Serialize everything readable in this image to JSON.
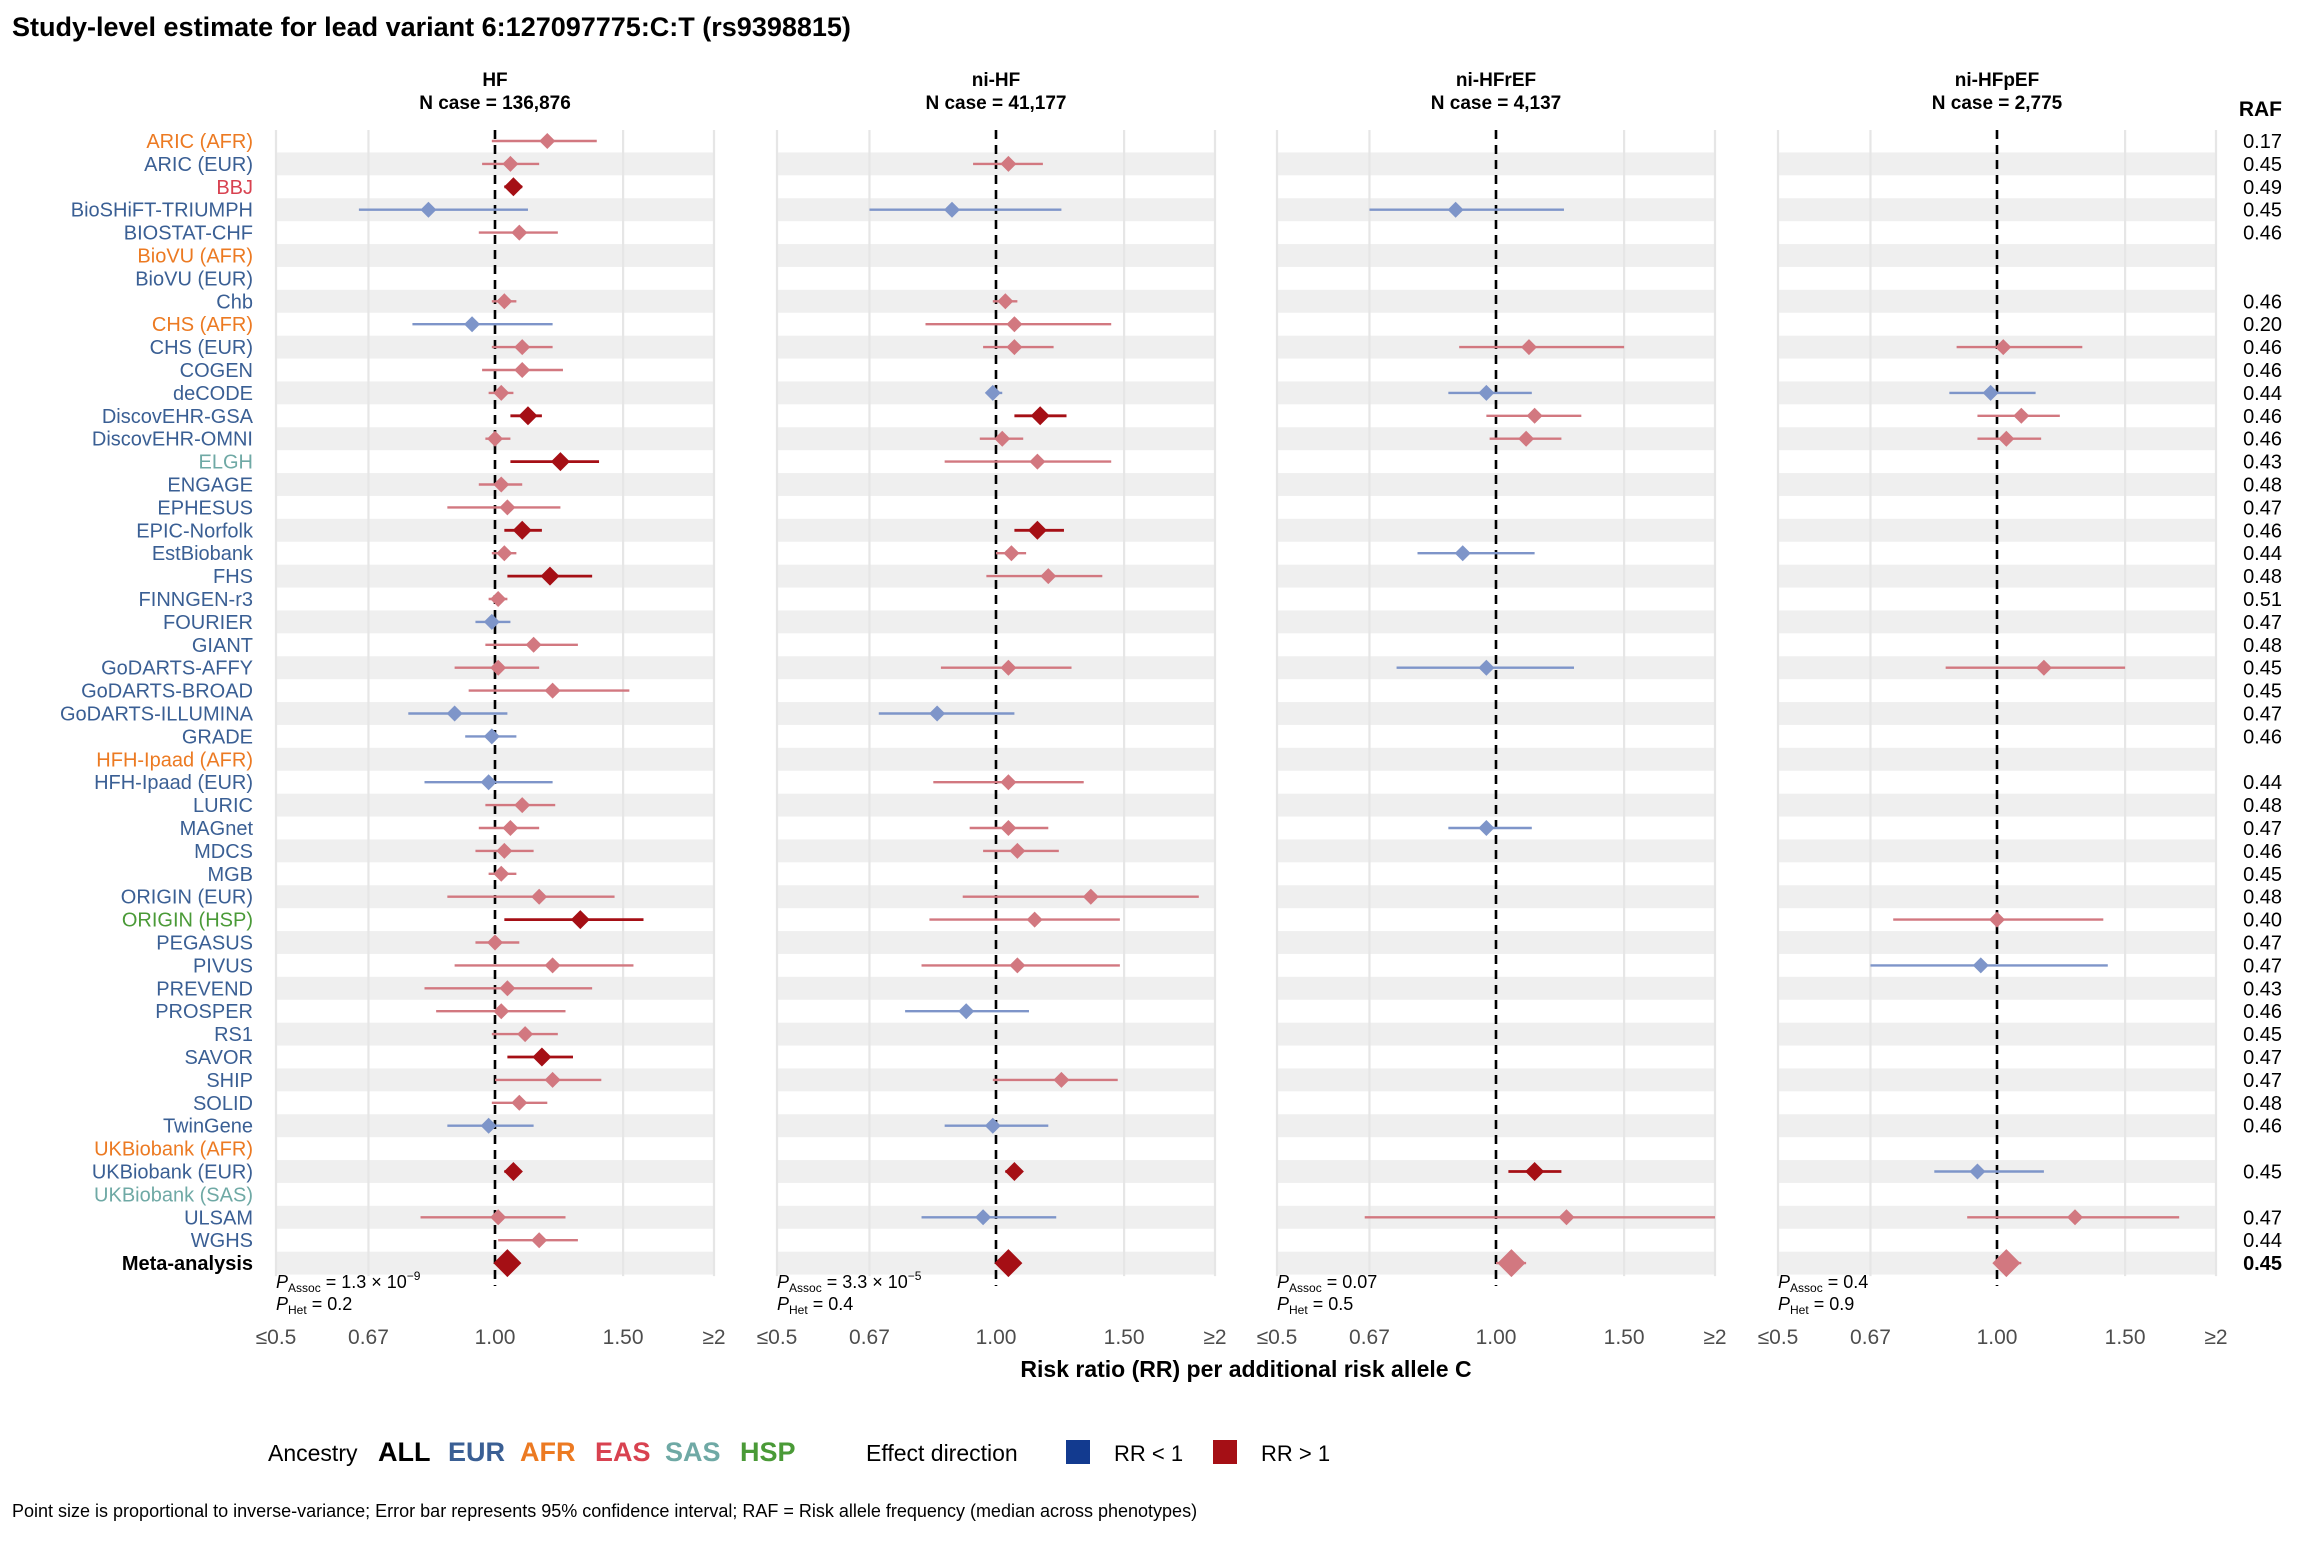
{
  "chart_data": {
    "type": "forest",
    "title": "Study-level estimate for lead variant 6:127097775:C:T (rs9398815)",
    "xlabel": "Risk ratio (RR) per additional risk allele C",
    "x_ticks": [
      "≤0.5",
      "0.67",
      "1.00",
      "1.50",
      "≥2"
    ],
    "x_scale": "log",
    "xlim": [
      0.5,
      2
    ],
    "raf_header": "RAF",
    "panels": [
      {
        "name": "HF",
        "n_case": "N case = 136,876",
        "p_assoc": "1.3 × 10",
        "p_assoc_exp": "−9",
        "p_het": "0.2"
      },
      {
        "name": "ni-HF",
        "n_case": "N case = 41,177",
        "p_assoc": "3.3 × 10",
        "p_assoc_exp": "−5",
        "p_het": "0.4"
      },
      {
        "name": "ni-HFrEF",
        "n_case": "N case = 4,137",
        "p_assoc": "0.07",
        "p_assoc_exp": "",
        "p_het": "0.5"
      },
      {
        "name": "ni-HFpEF",
        "n_case": "N case = 2,775",
        "p_assoc": "0.4",
        "p_assoc_exp": "",
        "p_het": "0.9"
      }
    ],
    "p_labels": {
      "assoc_sub": "Assoc",
      "het_sub": "Het"
    },
    "studies": [
      {
        "label": "ARIC (AFR)",
        "ancestry": "AFR",
        "raf": "0.17",
        "est": [
          [
            1.18,
            0.99,
            1.38,
            "l"
          ],
          null,
          null,
          null
        ]
      },
      {
        "label": "ARIC (EUR)",
        "ancestry": "EUR",
        "raf": "0.45",
        "est": [
          [
            1.05,
            0.96,
            1.15,
            "l"
          ],
          [
            1.04,
            0.93,
            1.16,
            "l"
          ],
          null,
          null
        ]
      },
      {
        "label": "BBJ",
        "ancestry": "EAS",
        "raf": "0.49",
        "est": [
          [
            1.06,
            1.03,
            1.09,
            "s"
          ],
          null,
          null,
          null
        ]
      },
      {
        "label": "BioSHiFT-TRIUMPH",
        "ancestry": "EUR",
        "raf": "0.45",
        "est": [
          [
            0.81,
            0.65,
            1.11,
            "l"
          ],
          [
            0.87,
            0.67,
            1.23,
            "l"
          ],
          [
            0.88,
            0.67,
            1.24,
            "l"
          ],
          null
        ]
      },
      {
        "label": "BIOSTAT-CHF",
        "ancestry": "EUR",
        "raf": "0.46",
        "est": [
          [
            1.08,
            0.95,
            1.22,
            "l"
          ],
          null,
          null,
          null
        ]
      },
      {
        "label": "BioVU (AFR)",
        "ancestry": "AFR",
        "raf": "",
        "est": [
          null,
          null,
          null,
          null
        ]
      },
      {
        "label": "BioVU (EUR)",
        "ancestry": "EUR",
        "raf": "",
        "est": [
          null,
          null,
          null,
          null
        ]
      },
      {
        "label": "Chb",
        "ancestry": "EUR",
        "raf": "0.46",
        "est": [
          [
            1.03,
            0.99,
            1.07,
            "l"
          ],
          [
            1.03,
            0.99,
            1.07,
            "l"
          ],
          null,
          null
        ]
      },
      {
        "label": "CHS (AFR)",
        "ancestry": "AFR",
        "raf": "0.20",
        "est": [
          [
            0.93,
            0.77,
            1.2,
            "l"
          ],
          [
            1.06,
            0.8,
            1.44,
            "l"
          ],
          null,
          null
        ]
      },
      {
        "label": "CHS (EUR)",
        "ancestry": "EUR",
        "raf": "0.46",
        "est": [
          [
            1.09,
            0.99,
            1.2,
            "l"
          ],
          [
            1.06,
            0.96,
            1.2,
            "l"
          ],
          [
            1.11,
            0.89,
            1.5,
            "l"
          ],
          [
            1.02,
            0.88,
            1.31,
            "l"
          ]
        ]
      },
      {
        "label": "COGEN",
        "ancestry": "EUR",
        "raf": "0.46",
        "est": [
          [
            1.09,
            0.96,
            1.24,
            "l"
          ],
          null,
          null,
          null
        ]
      },
      {
        "label": "deCODE",
        "ancestry": "EUR",
        "raf": "0.44",
        "est": [
          [
            1.02,
            0.98,
            1.06,
            "l"
          ],
          [
            0.99,
            0.97,
            1.02,
            "l"
          ],
          [
            0.97,
            0.86,
            1.12,
            "l"
          ],
          [
            0.98,
            0.86,
            1.13,
            "l"
          ]
        ]
      },
      {
        "label": "DiscovEHR-GSA",
        "ancestry": "EUR",
        "raf": "0.46",
        "est": [
          [
            1.11,
            1.05,
            1.16,
            "s"
          ],
          [
            1.15,
            1.06,
            1.25,
            "s"
          ],
          [
            1.13,
            0.97,
            1.31,
            "l"
          ],
          [
            1.08,
            0.94,
            1.22,
            "l"
          ]
        ]
      },
      {
        "label": "DiscovEHR-OMNI",
        "ancestry": "EUR",
        "raf": "0.46",
        "est": [
          [
            1.0,
            0.97,
            1.05,
            "l"
          ],
          [
            1.02,
            0.95,
            1.09,
            "l"
          ],
          [
            1.1,
            0.98,
            1.23,
            "l"
          ],
          [
            1.03,
            0.94,
            1.15,
            "l"
          ]
        ]
      },
      {
        "label": "ELGH",
        "ancestry": "SAS",
        "raf": "0.43",
        "est": [
          [
            1.23,
            1.05,
            1.39,
            "s"
          ],
          [
            1.14,
            0.85,
            1.44,
            "l"
          ],
          null,
          null
        ]
      },
      {
        "label": "ENGAGE",
        "ancestry": "EUR",
        "raf": "0.48",
        "est": [
          [
            1.02,
            0.95,
            1.09,
            "l"
          ],
          null,
          null,
          null
        ]
      },
      {
        "label": "EPHESUS",
        "ancestry": "EUR",
        "raf": "0.47",
        "est": [
          [
            1.04,
            0.86,
            1.23,
            "l"
          ],
          null,
          null,
          null
        ]
      },
      {
        "label": "EPIC-Norfolk",
        "ancestry": "EUR",
        "raf": "0.46",
        "est": [
          [
            1.09,
            1.03,
            1.16,
            "s"
          ],
          [
            1.14,
            1.06,
            1.24,
            "s"
          ],
          null,
          null
        ]
      },
      {
        "label": "EstBiobank",
        "ancestry": "EUR",
        "raf": "0.44",
        "est": [
          [
            1.03,
            0.99,
            1.07,
            "l"
          ],
          [
            1.05,
            1.0,
            1.1,
            "l"
          ],
          [
            0.9,
            0.78,
            1.13,
            "l"
          ],
          null
        ]
      },
      {
        "label": "FHS",
        "ancestry": "EUR",
        "raf": "0.48",
        "est": [
          [
            1.19,
            1.04,
            1.36,
            "s"
          ],
          [
            1.18,
            0.97,
            1.4,
            "l"
          ],
          null,
          null
        ]
      },
      {
        "label": "FINNGEN-r3",
        "ancestry": "EUR",
        "raf": "0.51",
        "est": [
          [
            1.01,
            0.98,
            1.04,
            "l"
          ],
          null,
          null,
          null
        ]
      },
      {
        "label": "FOURIER",
        "ancestry": "EUR",
        "raf": "0.47",
        "est": [
          [
            0.99,
            0.94,
            1.05,
            "l"
          ],
          null,
          null,
          null
        ]
      },
      {
        "label": "GIANT",
        "ancestry": "EUR",
        "raf": "0.48",
        "est": [
          [
            1.13,
            0.97,
            1.3,
            "l"
          ],
          null,
          null,
          null
        ]
      },
      {
        "label": "GoDARTS-AFFY",
        "ancestry": "EUR",
        "raf": "0.45",
        "est": [
          [
            1.01,
            0.88,
            1.15,
            "l"
          ],
          [
            1.04,
            0.84,
            1.27,
            "l"
          ],
          [
            0.97,
            0.73,
            1.28,
            "l"
          ],
          [
            1.16,
            0.85,
            1.5,
            "l"
          ]
        ]
      },
      {
        "label": "GoDARTS-BROAD",
        "ancestry": "EUR",
        "raf": "0.45",
        "est": [
          [
            1.2,
            0.92,
            1.53,
            "l"
          ],
          null,
          null,
          null
        ]
      },
      {
        "label": "GoDARTS-ILLUMINA",
        "ancestry": "EUR",
        "raf": "0.47",
        "est": [
          [
            0.88,
            0.76,
            1.04,
            "l"
          ],
          [
            0.83,
            0.69,
            1.06,
            "l"
          ],
          null,
          null
        ]
      },
      {
        "label": "GRADE",
        "ancestry": "EUR",
        "raf": "0.46",
        "est": [
          [
            0.99,
            0.91,
            1.07,
            "l"
          ],
          null,
          null,
          null
        ]
      },
      {
        "label": "HFH-Ipaad (AFR)",
        "ancestry": "AFR",
        "raf": "",
        "est": [
          null,
          null,
          null,
          null
        ]
      },
      {
        "label": "HFH-Ipaad (EUR)",
        "ancestry": "EUR",
        "raf": "0.44",
        "est": [
          [
            0.98,
            0.8,
            1.2,
            "l"
          ],
          [
            1.04,
            0.82,
            1.32,
            "l"
          ],
          null,
          null
        ]
      },
      {
        "label": "LURIC",
        "ancestry": "EUR",
        "raf": "0.48",
        "est": [
          [
            1.09,
            0.97,
            1.21,
            "l"
          ],
          null,
          null,
          null
        ]
      },
      {
        "label": "MAGnet",
        "ancestry": "EUR",
        "raf": "0.47",
        "est": [
          [
            1.05,
            0.95,
            1.15,
            "l"
          ],
          [
            1.04,
            0.92,
            1.18,
            "l"
          ],
          [
            0.97,
            0.86,
            1.12,
            "l"
          ],
          null
        ]
      },
      {
        "label": "MDCS",
        "ancestry": "EUR",
        "raf": "0.46",
        "est": [
          [
            1.03,
            0.94,
            1.13,
            "l"
          ],
          [
            1.07,
            0.96,
            1.22,
            "l"
          ],
          null,
          null
        ]
      },
      {
        "label": "MGB",
        "ancestry": "EUR",
        "raf": "0.45",
        "est": [
          [
            1.02,
            0.98,
            1.07,
            "l"
          ],
          null,
          null,
          null
        ]
      },
      {
        "label": "ORIGIN (EUR)",
        "ancestry": "EUR",
        "raf": "0.48",
        "est": [
          [
            1.15,
            0.86,
            1.46,
            "l"
          ],
          [
            1.35,
            0.9,
            1.9,
            "l"
          ],
          null,
          null
        ]
      },
      {
        "label": "ORIGIN (HSP)",
        "ancestry": "HSP",
        "raf": "0.40",
        "est": [
          [
            1.31,
            1.03,
            1.6,
            "s"
          ],
          [
            1.13,
            0.81,
            1.48,
            "l"
          ],
          null,
          [
            1.0,
            0.72,
            1.4,
            "l"
          ]
        ]
      },
      {
        "label": "PEGASUS",
        "ancestry": "EUR",
        "raf": "0.47",
        "est": [
          [
            1.0,
            0.94,
            1.08,
            "l"
          ],
          null,
          null,
          null
        ]
      },
      {
        "label": "PIVUS",
        "ancestry": "EUR",
        "raf": "0.47",
        "est": [
          [
            1.2,
            0.88,
            1.55,
            "l"
          ],
          [
            1.07,
            0.79,
            1.48,
            "l"
          ],
          null,
          [
            0.95,
            0.67,
            1.42,
            "l"
          ]
        ]
      },
      {
        "label": "PREVEND",
        "ancestry": "EUR",
        "raf": "0.43",
        "est": [
          [
            1.04,
            0.8,
            1.36,
            "l"
          ],
          null,
          null,
          null
        ]
      },
      {
        "label": "PROSPER",
        "ancestry": "EUR",
        "raf": "0.46",
        "est": [
          [
            1.02,
            0.83,
            1.25,
            "l"
          ],
          [
            0.91,
            0.75,
            1.11,
            "l"
          ],
          null,
          null
        ]
      },
      {
        "label": "RS1",
        "ancestry": "EUR",
        "raf": "0.45",
        "est": [
          [
            1.1,
            0.99,
            1.22,
            "l"
          ],
          null,
          null,
          null
        ]
      },
      {
        "label": "SAVOR",
        "ancestry": "EUR",
        "raf": "0.47",
        "est": [
          [
            1.16,
            1.04,
            1.28,
            "s"
          ],
          null,
          null,
          null
        ]
      },
      {
        "label": "SHIP",
        "ancestry": "EUR",
        "raf": "0.47",
        "est": [
          [
            1.2,
            1.0,
            1.4,
            "l"
          ],
          [
            1.23,
            0.99,
            1.47,
            "l"
          ],
          null,
          null
        ]
      },
      {
        "label": "SOLID",
        "ancestry": "EUR",
        "raf": "0.48",
        "est": [
          [
            1.08,
            0.99,
            1.18,
            "l"
          ],
          null,
          null,
          null
        ]
      },
      {
        "label": "TwinGene",
        "ancestry": "EUR",
        "raf": "0.46",
        "est": [
          [
            0.98,
            0.86,
            1.13,
            "l"
          ],
          [
            0.99,
            0.85,
            1.18,
            "l"
          ],
          null,
          null
        ]
      },
      {
        "label": "UKBiobank (AFR)",
        "ancestry": "AFR",
        "raf": "",
        "est": [
          null,
          null,
          null,
          null
        ]
      },
      {
        "label": "UKBiobank (EUR)",
        "ancestry": "EUR",
        "raf": "0.45",
        "est": [
          [
            1.06,
            1.03,
            1.08,
            "s"
          ],
          [
            1.06,
            1.03,
            1.08,
            "s"
          ],
          [
            1.13,
            1.04,
            1.23,
            "s"
          ],
          [
            0.94,
            0.82,
            1.16,
            "l"
          ]
        ]
      },
      {
        "label": "UKBiobank (SAS)",
        "ancestry": "SAS",
        "raf": "",
        "est": [
          null,
          null,
          null,
          null
        ]
      },
      {
        "label": "ULSAM",
        "ancestry": "EUR",
        "raf": "0.47",
        "est": [
          [
            1.01,
            0.79,
            1.25,
            "l"
          ],
          [
            0.96,
            0.79,
            1.21,
            "l"
          ],
          [
            1.25,
            0.66,
            2.0,
            "l"
          ],
          [
            1.28,
            0.91,
            1.78,
            "l"
          ]
        ]
      },
      {
        "label": "WGHS",
        "ancestry": "EUR",
        "raf": "0.44",
        "est": [
          [
            1.15,
            1.01,
            1.3,
            "l"
          ],
          null,
          null,
          null
        ]
      },
      {
        "label": "Meta-analysis",
        "ancestry": "ALL",
        "raf": "0.45",
        "meta": true,
        "est": [
          [
            1.04,
            1.03,
            1.06,
            "s"
          ],
          [
            1.04,
            1.02,
            1.06,
            "s"
          ],
          [
            1.05,
            1.0,
            1.1,
            "l"
          ],
          [
            1.03,
            0.99,
            1.08,
            "l"
          ]
        ]
      }
    ],
    "ancestry_legend": {
      "title": "Ancestry",
      "items": [
        "ALL",
        "EUR",
        "AFR",
        "EAS",
        "SAS",
        "HSP"
      ]
    },
    "effect_legend": {
      "title": "Effect direction",
      "items": [
        {
          "label": "RR < 1",
          "color": "#123a8f"
        },
        {
          "label": "RR > 1",
          "color": "#a50f15"
        }
      ]
    },
    "footnote": "Point size is proportional to inverse-variance; Error bar represents 95% confidence interval; RAF = Risk allele frequency (median across phenotypes)",
    "colors": {
      "ALL": "#000000",
      "EUR": "#3a5f94",
      "AFR": "#ec7a22",
      "EAS": "#d84250",
      "SAS": "#6fa9a5",
      "HSP": "#4a9a37",
      "rr_lt1": "#123a8f",
      "rr_gt1": "#a50f15",
      "rr_lt1_light": "#7e95c9",
      "rr_gt1_light": "#d27880",
      "stripe": "#efefef"
    }
  }
}
